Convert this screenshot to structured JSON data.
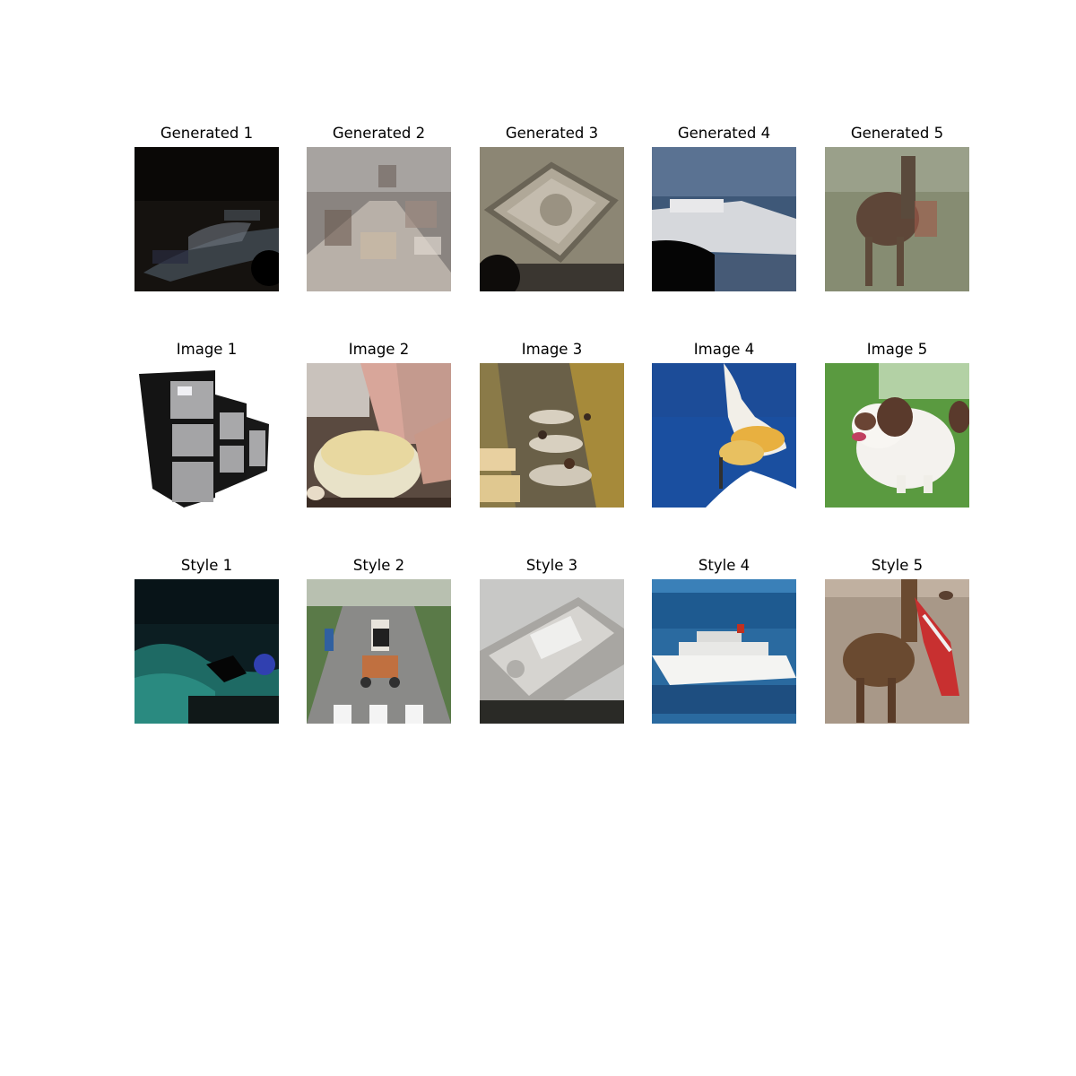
{
  "rows": [
    {
      "id": "generated",
      "titles": [
        "Generated 1",
        "Generated 2",
        "Generated 3",
        "Generated 4",
        "Generated 5"
      ]
    },
    {
      "id": "image",
      "titles": [
        "Image 1",
        "Image 2",
        "Image 3",
        "Image 4",
        "Image 5"
      ]
    },
    {
      "id": "style",
      "titles": [
        "Style 1",
        "Style 2",
        "Style 3",
        "Style 4",
        "Style 5"
      ]
    }
  ],
  "panel_depictions": {
    "generated": [
      "dark blurry scene",
      "blurry street scene",
      "blurry hard drive",
      "blurry ship on water",
      "blurry camel"
    ],
    "image": [
      "filing cabinets",
      "hands kneading dough in bowl",
      "factory workers at tables",
      "rocket launch",
      "spaniel dog on grass"
    ],
    "style": [
      "underwater reef with diver",
      "cyclists on road",
      "hard disk drive",
      "cruise ship at sea",
      "camel with red cloth"
    ]
  }
}
